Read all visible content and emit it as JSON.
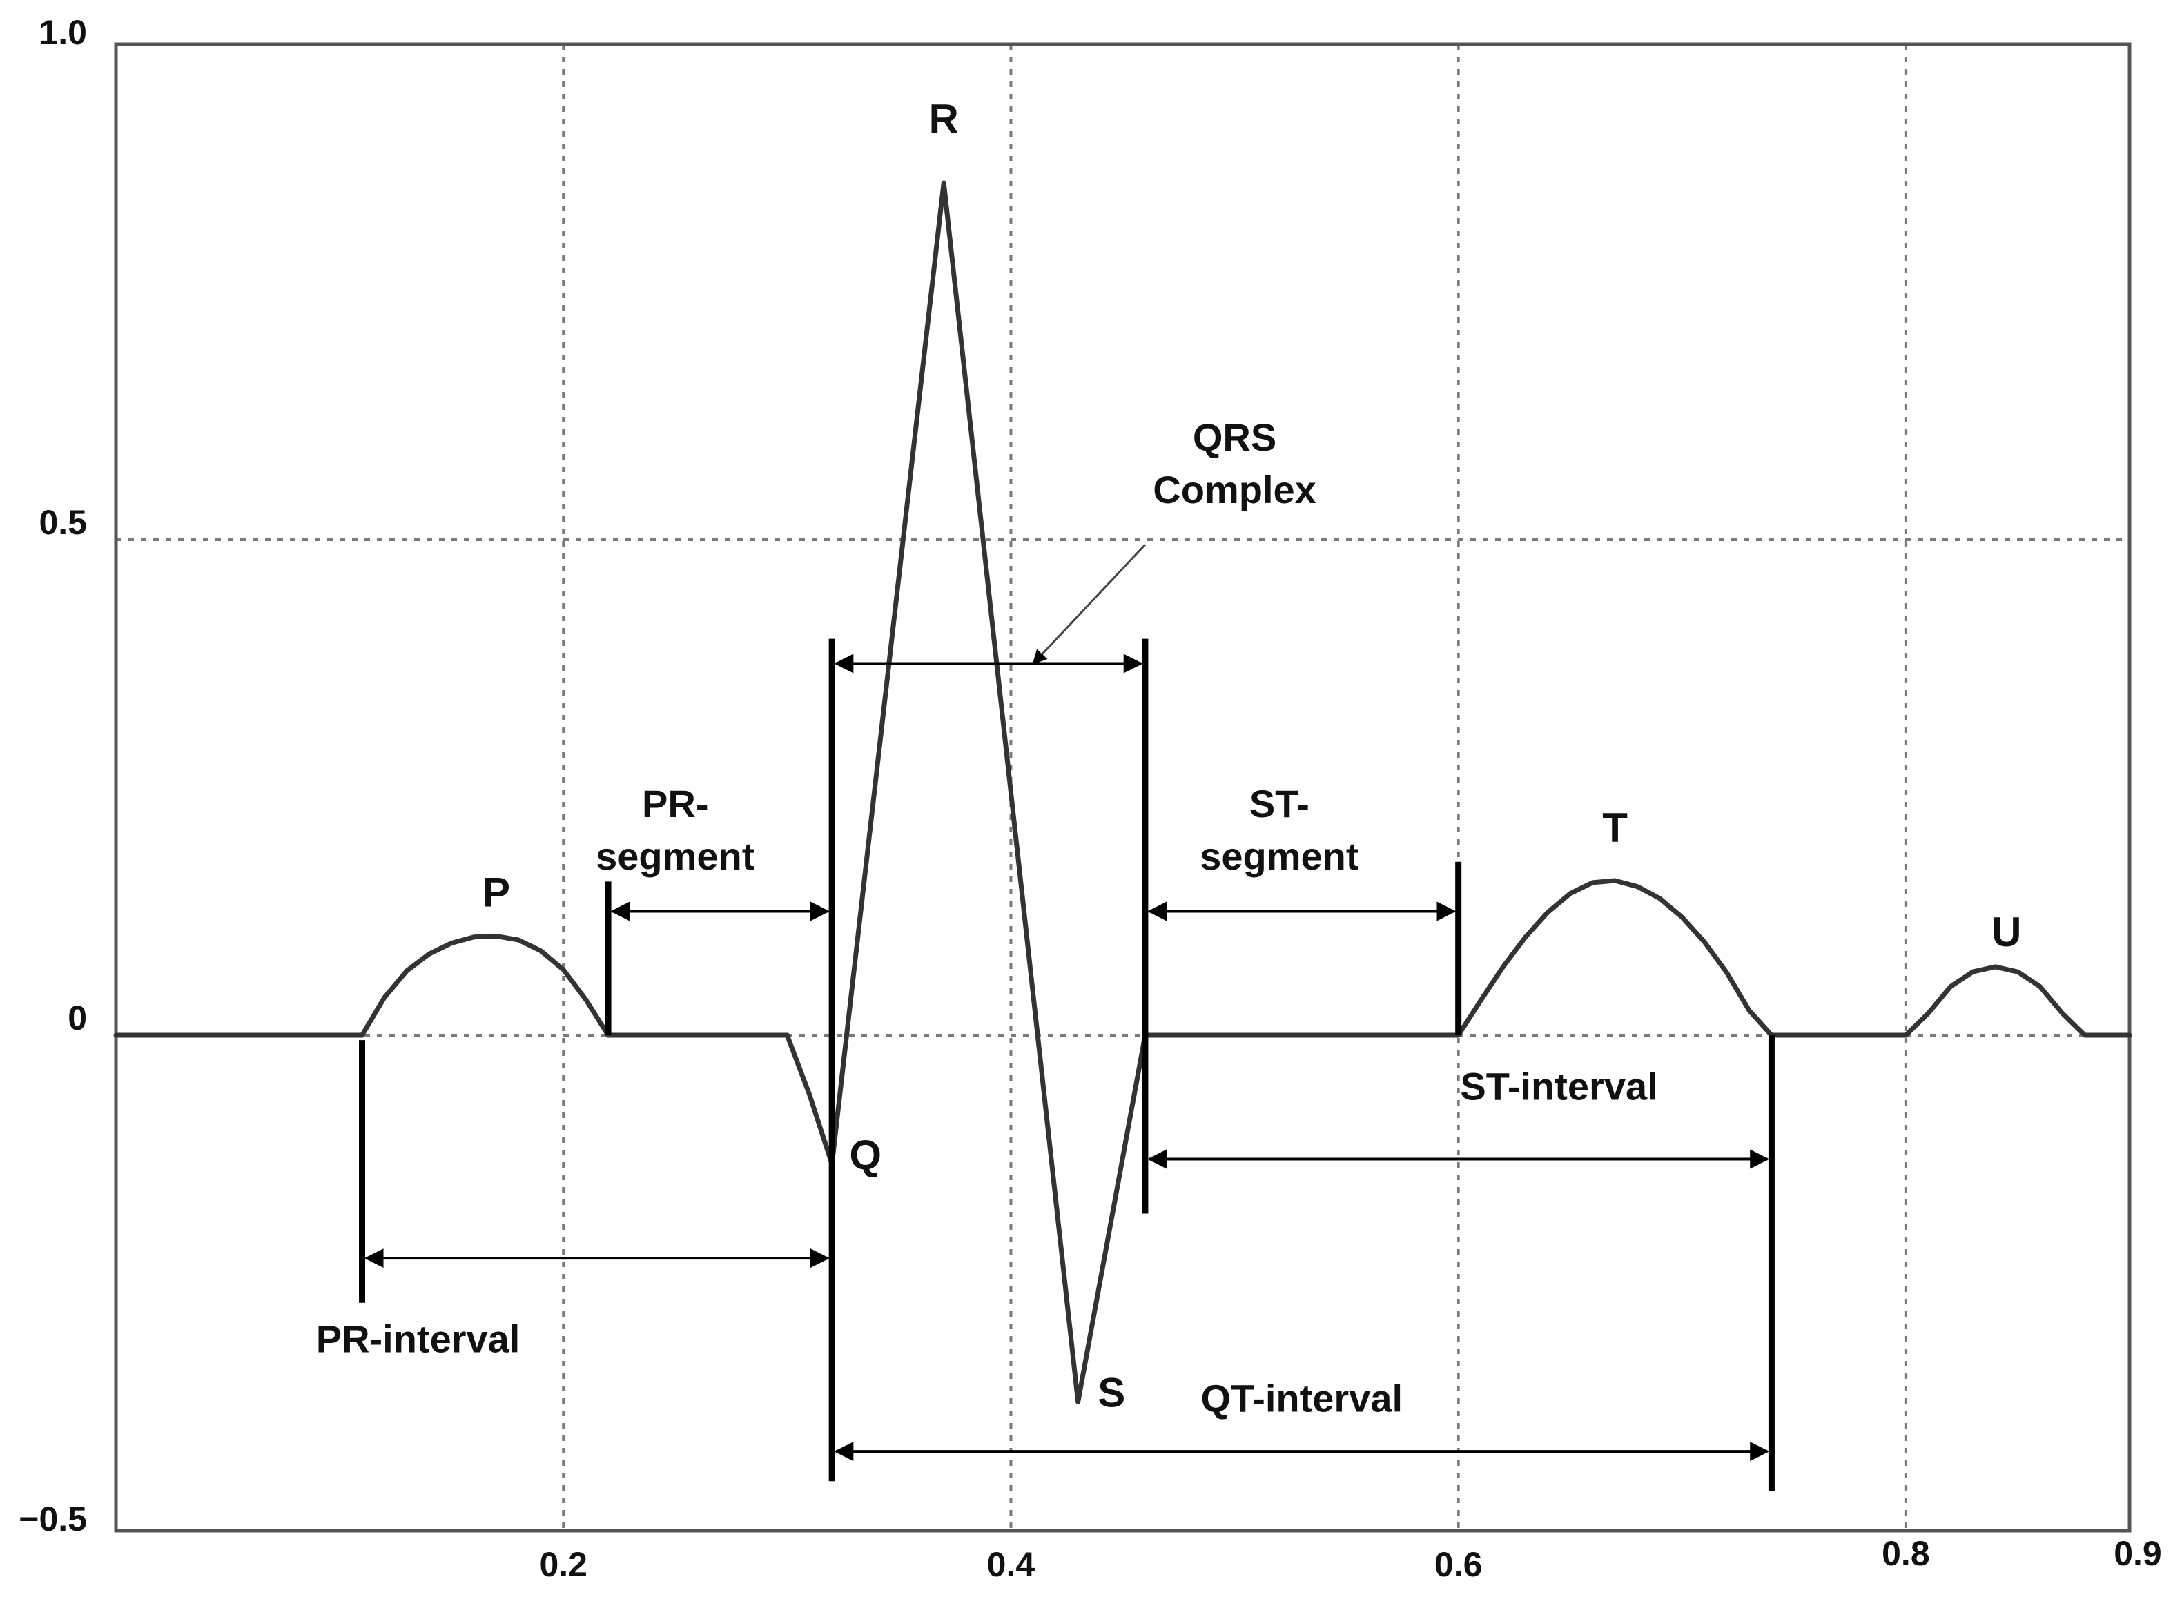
{
  "chart_data": {
    "type": "line",
    "title": "",
    "xlabel": "",
    "ylabel": "",
    "xlim": [
      0,
      0.9
    ],
    "ylim": [
      -0.5,
      1.0
    ],
    "grid": true,
    "x_ticks": [
      {
        "value": 0.2,
        "label": "0.2"
      },
      {
        "value": 0.4,
        "label": "0.4"
      },
      {
        "value": 0.6,
        "label": "0.6"
      },
      {
        "value": 0.8,
        "label": "0.8"
      },
      {
        "value": 0.9,
        "label": "0.9"
      }
    ],
    "y_ticks": [
      {
        "value": 1.0,
        "label": "1.0"
      },
      {
        "value": 0.5,
        "label": "0.5"
      },
      {
        "value": 0,
        "label": "0"
      },
      {
        "value": -0.5,
        "label": "−0.5"
      }
    ],
    "series": [
      {
        "x": [
          0,
          0.11,
          0.12,
          0.13,
          0.14,
          0.15,
          0.16,
          0.17,
          0.18,
          0.19,
          0.2,
          0.21,
          0.22,
          0.23,
          0.3,
          0.31,
          0.32,
          0.37,
          0.43,
          0.46,
          0.6,
          0.61,
          0.62,
          0.63,
          0.64,
          0.65,
          0.66,
          0.67,
          0.68,
          0.69,
          0.7,
          0.71,
          0.72,
          0.73,
          0.74,
          0.8,
          0.81,
          0.82,
          0.83,
          0.84,
          0.85,
          0.86,
          0.87,
          0.88,
          0.9
        ],
        "y": [
          0,
          0,
          0.038,
          0.065,
          0.082,
          0.093,
          0.099,
          0.1,
          0.096,
          0.085,
          0.066,
          0.036,
          0,
          0,
          0,
          -0.06,
          -0.13,
          0.86,
          -0.37,
          0,
          0,
          0.035,
          0.069,
          0.099,
          0.124,
          0.143,
          0.154,
          0.156,
          0.15,
          0.138,
          0.119,
          0.094,
          0.063,
          0.025,
          0,
          0,
          0.022,
          0.049,
          0.064,
          0.069,
          0.064,
          0.049,
          0.022,
          0,
          0
        ]
      }
    ],
    "wave_labels": [
      {
        "text": "P",
        "x": 0.17,
        "y": 0.13
      },
      {
        "text": "Q",
        "x": 0.335,
        "y": -0.135
      },
      {
        "text": "R",
        "x": 0.37,
        "y": 0.91
      },
      {
        "text": "S",
        "x": 0.445,
        "y": -0.375
      },
      {
        "text": "T",
        "x": 0.67,
        "y": 0.195
      },
      {
        "text": "U",
        "x": 0.845,
        "y": 0.09
      }
    ],
    "markers": [
      {
        "x": 0.11,
        "y1": -0.005,
        "y2": -0.27
      },
      {
        "x": 0.22,
        "y1": 0.155,
        "y2": 0
      },
      {
        "x": 0.32,
        "y1": 0.4,
        "y2": -0.45
      },
      {
        "x": 0.46,
        "y1": 0.4,
        "y2": -0.18
      },
      {
        "x": 0.6,
        "y1": 0.175,
        "y2": 0
      },
      {
        "x": 0.74,
        "y1": 0,
        "y2": -0.46
      }
    ],
    "intervals": [
      {
        "name": "QRS Complex",
        "x1": 0.32,
        "x2": 0.46,
        "y": 0.375
      },
      {
        "name": "PR-segment",
        "x1": 0.22,
        "x2": 0.32,
        "y": 0.125
      },
      {
        "name": "ST-segment",
        "x1": 0.46,
        "x2": 0.6,
        "y": 0.125
      },
      {
        "name": "ST-interval",
        "x1": 0.46,
        "x2": 0.74,
        "y": -0.125
      },
      {
        "name": "PR-interval",
        "x1": 0.11,
        "x2": 0.32,
        "y": -0.225
      },
      {
        "name": "QT-interval",
        "x1": 0.32,
        "x2": 0.74,
        "y": -0.42
      }
    ],
    "annotations": [
      {
        "lines": [
          "QRS",
          "Complex"
        ],
        "x": 0.5,
        "y": 0.59
      },
      {
        "lines": [
          "PR-",
          "segment"
        ],
        "x": 0.25,
        "y": 0.22
      },
      {
        "lines": [
          "ST-",
          "segment"
        ],
        "x": 0.52,
        "y": 0.22
      },
      {
        "lines": [
          "ST-interval"
        ],
        "x": 0.645,
        "y": -0.065
      },
      {
        "lines": [
          "PR-interval"
        ],
        "x": 0.135,
        "y": -0.32
      },
      {
        "lines": [
          "QT-interval"
        ],
        "x": 0.53,
        "y": -0.38
      }
    ],
    "pointer": {
      "from": {
        "x": 0.46,
        "y": 0.495
      },
      "to": {
        "x": 0.41,
        "y": 0.375
      }
    }
  },
  "colors": {
    "axis": "#555555",
    "grid": "#7a7a7a",
    "wave": "#333333",
    "marker": "#000000",
    "text": "#111111"
  }
}
